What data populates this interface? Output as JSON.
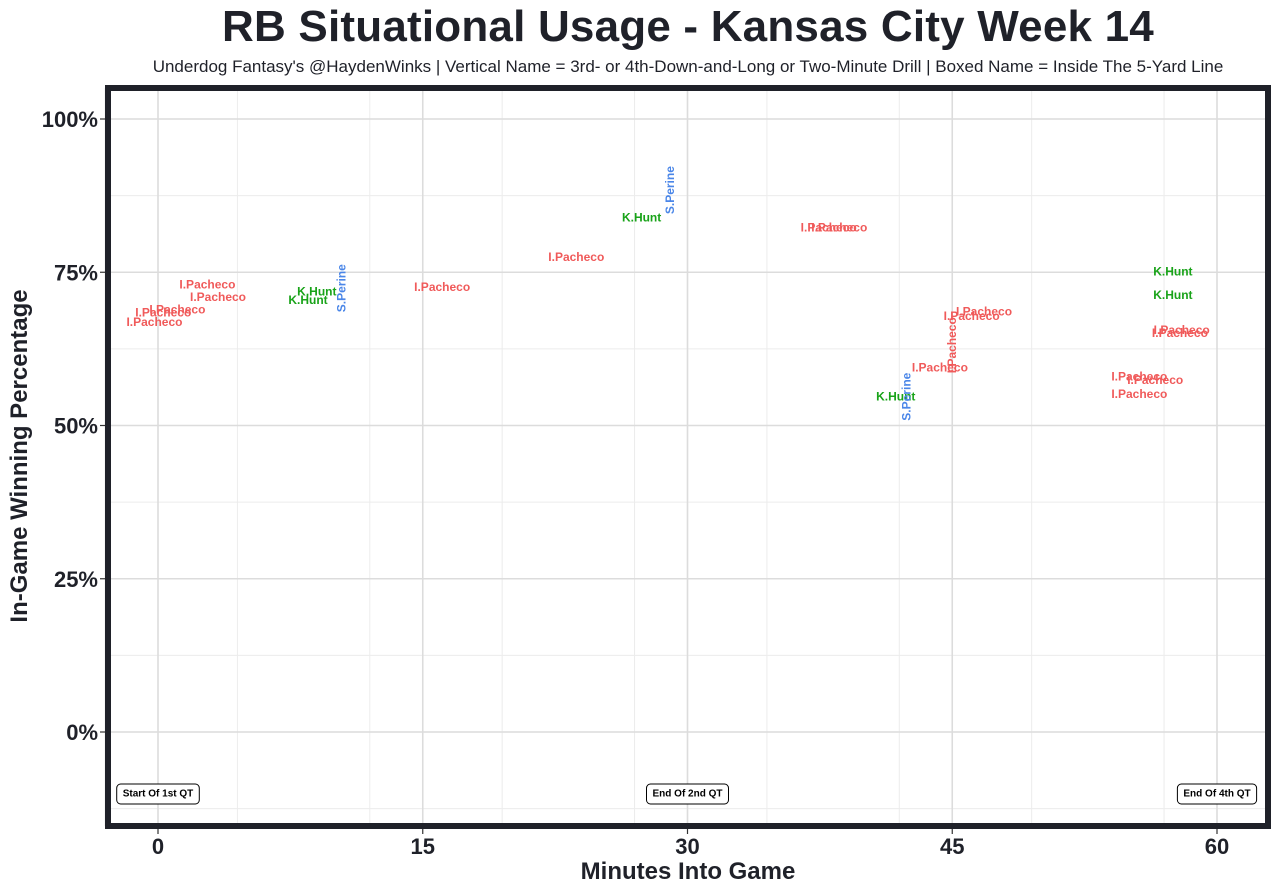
{
  "chart_data": {
    "type": "scatter",
    "title": "RB Situational Usage - Kansas City Week 14",
    "subtitle": "Underdog Fantasy's @HaydenWinks | Vertical Name = 3rd- or 4th-Down-and-Long or Two-Minute Drill | Boxed Name = Inside The 5-Yard Line",
    "xlabel": "Minutes Into Game",
    "ylabel": "In-Game Winning Percentage",
    "xlim": [
      -3,
      63
    ],
    "ylim": [
      -15,
      105
    ],
    "x_ticks": [
      0,
      15,
      30,
      45,
      60
    ],
    "x_tick_labels": [
      "0",
      "15",
      "30",
      "45",
      "60"
    ],
    "y_ticks": [
      0,
      25,
      50,
      75,
      100
    ],
    "y_tick_labels": [
      "0%",
      "25%",
      "50%",
      "75%",
      "100%"
    ],
    "grid": true,
    "colors": {
      "I.Pacheco": "#f05a5a",
      "K.Hunt": "#19a319",
      "S.Perine": "#4a86e8"
    },
    "points": [
      {
        "name": "I.Pacheco",
        "x": 2.8,
        "y": 73.0,
        "vertical": false
      },
      {
        "name": "I.Pacheco",
        "x": 3.4,
        "y": 71.0,
        "vertical": false
      },
      {
        "name": "I.Pacheco",
        "x": 1.1,
        "y": 68.9,
        "vertical": false
      },
      {
        "name": "I.Pacheco",
        "x": 0.3,
        "y": 68.4,
        "vertical": false
      },
      {
        "name": "I.Pacheco",
        "x": -0.2,
        "y": 66.9,
        "vertical": false
      },
      {
        "name": "K.Hunt",
        "x": 9.0,
        "y": 71.9,
        "vertical": false
      },
      {
        "name": "K.Hunt",
        "x": 8.5,
        "y": 70.5,
        "vertical": false
      },
      {
        "name": "S.Perine",
        "x": 10.4,
        "y": 72.4,
        "vertical": true
      },
      {
        "name": "I.Pacheco",
        "x": 16.1,
        "y": 72.6,
        "vertical": false
      },
      {
        "name": "I.Pacheco",
        "x": 23.7,
        "y": 77.5,
        "vertical": false
      },
      {
        "name": "K.Hunt",
        "x": 27.4,
        "y": 83.9,
        "vertical": false
      },
      {
        "name": "S.Perine",
        "x": 29.0,
        "y": 88.4,
        "vertical": true
      },
      {
        "name": "I.Pacheco",
        "x": 38.0,
        "y": 82.3,
        "vertical": false
      },
      {
        "name": "I.Pacheco",
        "x": 38.6,
        "y": 82.3,
        "vertical": false
      },
      {
        "name": "I.Pacheco",
        "x": 46.8,
        "y": 68.6,
        "vertical": false
      },
      {
        "name": "I.Pacheco",
        "x": 46.1,
        "y": 67.9,
        "vertical": false
      },
      {
        "name": "I.Pacheco",
        "x": 45.0,
        "y": 63.1,
        "vertical": true
      },
      {
        "name": "I.Pacheco",
        "x": 44.3,
        "y": 59.5,
        "vertical": false
      },
      {
        "name": "K.Hunt",
        "x": 41.8,
        "y": 54.7,
        "vertical": false
      },
      {
        "name": "S.Perine",
        "x": 42.4,
        "y": 54.7,
        "vertical": true
      },
      {
        "name": "K.Hunt",
        "x": 57.5,
        "y": 75.1,
        "vertical": false
      },
      {
        "name": "K.Hunt",
        "x": 57.5,
        "y": 71.3,
        "vertical": false
      },
      {
        "name": "I.Pacheco",
        "x": 58.0,
        "y": 65.6,
        "vertical": false
      },
      {
        "name": "I.Pacheco",
        "x": 57.9,
        "y": 65.1,
        "vertical": false
      },
      {
        "name": "I.Pacheco",
        "x": 55.6,
        "y": 58.0,
        "vertical": false
      },
      {
        "name": "I.Pacheco",
        "x": 56.5,
        "y": 57.4,
        "vertical": false
      },
      {
        "name": "I.Pacheco",
        "x": 55.6,
        "y": 55.1,
        "vertical": false
      }
    ],
    "quarter_markers": [
      {
        "label": "Start Of 1st QT",
        "x": 0
      },
      {
        "label": "End Of 2nd QT",
        "x": 30
      },
      {
        "label": "End Of 4th QT",
        "x": 60
      }
    ]
  }
}
